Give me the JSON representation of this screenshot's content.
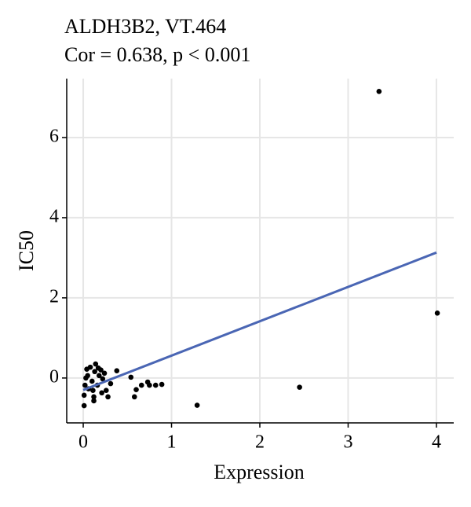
{
  "chart_data": {
    "type": "scatter",
    "title": "ALDH3B2, VT.464",
    "subtitle": "Cor = 0.638, p < 0.001",
    "x_label": "Expression",
    "y_label": "IC50",
    "color": "#000000",
    "x": [
      0.01,
      0.01,
      0.02,
      0.04,
      0.05,
      0.08,
      0.1,
      0.11,
      0.12,
      0.13,
      0.14,
      0.16,
      0.18,
      0.2,
      0.21,
      0.22,
      0.26,
      0.28,
      0.31,
      0.38,
      0.54,
      0.58,
      0.6,
      0.66,
      0.73,
      0.75,
      0.82,
      0.89,
      0.12,
      0.06,
      0.03,
      0.24,
      0.17,
      1.29,
      2.45,
      3.35,
      4.01
    ],
    "values": [
      -0.69,
      -0.43,
      -0.18,
      0.22,
      0.06,
      0.27,
      -0.08,
      -0.31,
      -0.47,
      0.16,
      0.35,
      -0.18,
      0.06,
      0.2,
      -0.37,
      -0.02,
      -0.31,
      -0.47,
      -0.14,
      0.18,
      0.02,
      -0.47,
      -0.29,
      -0.18,
      -0.1,
      -0.18,
      -0.18,
      -0.16,
      -0.57,
      -0.27,
      0,
      0.12,
      0.25,
      -0.68,
      -0.23,
      7.15,
      1.62
    ],
    "trend": {
      "color": "#4a66b4",
      "x": [
        0,
        4
      ],
      "values": [
        -0.3,
        3.13
      ]
    },
    "xlim": [
      -0.187,
      4.196
    ],
    "ylim": [
      -1.12,
      7.47
    ],
    "xticks": [
      0,
      1,
      2,
      3,
      4
    ],
    "yticks": [
      0,
      2,
      4,
      6
    ],
    "grid": true
  }
}
